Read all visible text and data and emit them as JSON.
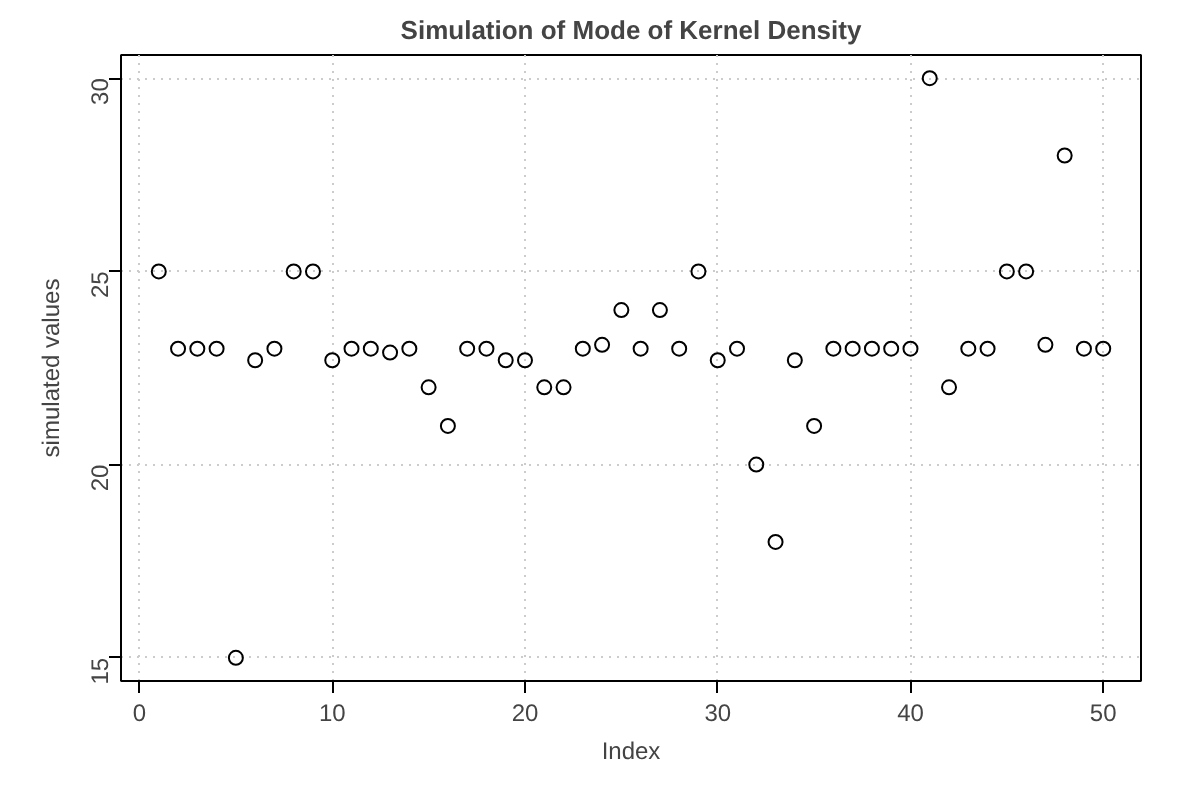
{
  "chart_data": {
    "type": "scatter",
    "title": "Simulation of Mode of Kernel Density",
    "xlabel": "Index",
    "ylabel": "simulated values",
    "x": [
      1,
      2,
      3,
      4,
      5,
      6,
      7,
      8,
      9,
      10,
      11,
      12,
      13,
      14,
      15,
      16,
      17,
      18,
      19,
      20,
      21,
      22,
      23,
      24,
      25,
      26,
      27,
      28,
      29,
      30,
      31,
      32,
      33,
      34,
      35,
      36,
      37,
      38,
      39,
      40,
      41,
      42,
      43,
      44,
      45,
      46,
      47,
      48,
      49,
      50
    ],
    "values": [
      25,
      23,
      23,
      23,
      15,
      22.7,
      23,
      25,
      25,
      22.7,
      23,
      23,
      22.9,
      23,
      22,
      21,
      23,
      23,
      22.7,
      22.7,
      22,
      22,
      23,
      23.1,
      24,
      23,
      24,
      23,
      25,
      22.7,
      23,
      20,
      18,
      22.7,
      21,
      23,
      23,
      23,
      23,
      23,
      30,
      22,
      23,
      23,
      25,
      25,
      23.1,
      28,
      23,
      23
    ],
    "color": "#000000",
    "marker": "circle",
    "xlim": [
      -0.96,
      51.96
    ],
    "ylim": [
      14.4,
      30.6
    ],
    "xticks": [
      0,
      10,
      20,
      30,
      40,
      50
    ],
    "yticks": [
      15,
      20,
      25,
      30
    ],
    "grid": true
  }
}
